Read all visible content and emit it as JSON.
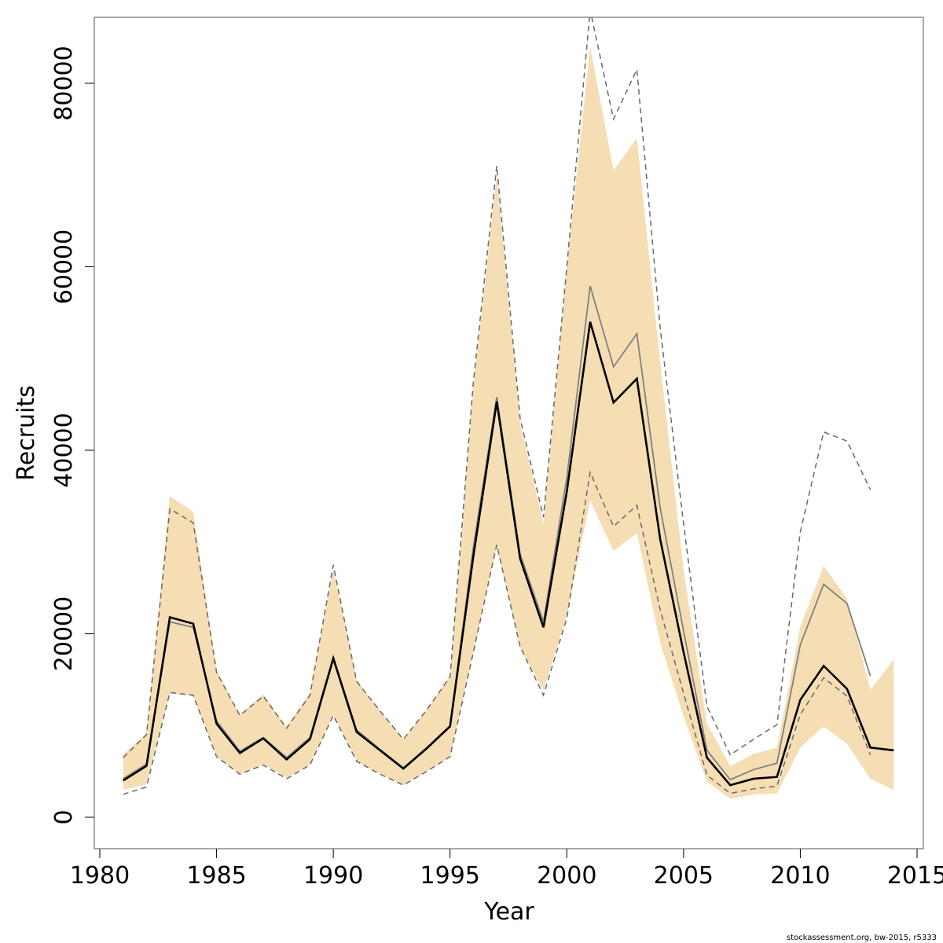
{
  "colors": {
    "band": "#f5deb3",
    "prev_line": "#808080",
    "prev_ci": "#696969",
    "current_line": "#000000",
    "axis": "#000000",
    "box": "#555555"
  },
  "chart_data": {
    "type": "line",
    "title": "",
    "xlabel": "Year",
    "ylabel": "Recruits",
    "xlim": [
      1980,
      2015
    ],
    "ylim": [
      0,
      85000
    ],
    "xticks": [
      "1980",
      "1985",
      "1990",
      "1995",
      "2000",
      "2005",
      "2010",
      "2015"
    ],
    "yticks": [
      "0",
      "20000",
      "40000",
      "60000",
      "80000"
    ],
    "grid": false,
    "x": [
      1981,
      1982,
      1983,
      1984,
      1985,
      1986,
      1987,
      1988,
      1989,
      1990,
      1991,
      1992,
      1993,
      1994,
      1995,
      1996,
      1997,
      1998,
      1999,
      2000,
      2001,
      2002,
      2003,
      2004,
      2005,
      2006,
      2007,
      2008,
      2009,
      2010,
      2011,
      2012,
      2013,
      2014
    ],
    "band_lower": [
      3000,
      3600,
      13500,
      13200,
      6600,
      4700,
      5800,
      4300,
      5700,
      11200,
      6100,
      4700,
      3500,
      5000,
      6600,
      18000,
      29500,
      18500,
      13800,
      22000,
      34500,
      29000,
      31000,
      19000,
      11000,
      3900,
      2000,
      2500,
      2600,
      7600,
      9900,
      8000,
      4200,
      3000
    ],
    "band_upper": [
      6800,
      9200,
      35000,
      33300,
      16000,
      11200,
      13400,
      9900,
      13600,
      27100,
      15000,
      11600,
      8500,
      11700,
      15500,
      47000,
      70000,
      43000,
      32000,
      60000,
      84000,
      70500,
      74000,
      49500,
      27000,
      10200,
      5600,
      6900,
      7600,
      20800,
      27400,
      23800,
      13900,
      17200
    ],
    "series": [
      {
        "role": "current",
        "values": [
          4000,
          5600,
          21800,
          21100,
          10200,
          7000,
          8600,
          6300,
          8500,
          17300,
          9300,
          7300,
          5300,
          7500,
          9900,
          28500,
          45300,
          28200,
          20700,
          35500,
          54000,
          45200,
          47800,
          30300,
          18000,
          6500,
          3500,
          4200,
          4400,
          12800,
          16500,
          14000,
          7600,
          7300
        ]
      },
      {
        "role": "previous",
        "values": [
          4200,
          5800,
          21300,
          20700,
          10500,
          7200,
          8700,
          6500,
          8700,
          17500,
          9500,
          7400,
          5400,
          7600,
          10000,
          29500,
          45800,
          28700,
          21300,
          37000,
          57900,
          49100,
          52700,
          33700,
          20300,
          7300,
          4100,
          5200,
          5900,
          18800,
          25400,
          23300,
          15400,
          null
        ]
      },
      {
        "role": "previous-lower-ci",
        "values": [
          2500,
          3300,
          13600,
          13300,
          6600,
          4700,
          5700,
          4200,
          5700,
          11100,
          6100,
          4700,
          3500,
          5000,
          6600,
          18000,
          29700,
          18600,
          13300,
          21700,
          37600,
          31700,
          34000,
          22600,
          13500,
          4600,
          2600,
          3100,
          3400,
          11200,
          15200,
          13200,
          6800,
          null
        ]
      },
      {
        "role": "previous-upper-ci",
        "values": [
          6500,
          9000,
          33600,
          32100,
          15800,
          11100,
          13200,
          9700,
          13300,
          27500,
          14800,
          11600,
          8500,
          11700,
          15300,
          47500,
          71000,
          43500,
          32700,
          60000,
          88000,
          76100,
          81500,
          53300,
          32000,
          12100,
          6800,
          8500,
          10100,
          31100,
          42000,
          41000,
          35700,
          null
        ]
      }
    ],
    "caption": "stockassessment.org, bw-2015, r5333"
  }
}
